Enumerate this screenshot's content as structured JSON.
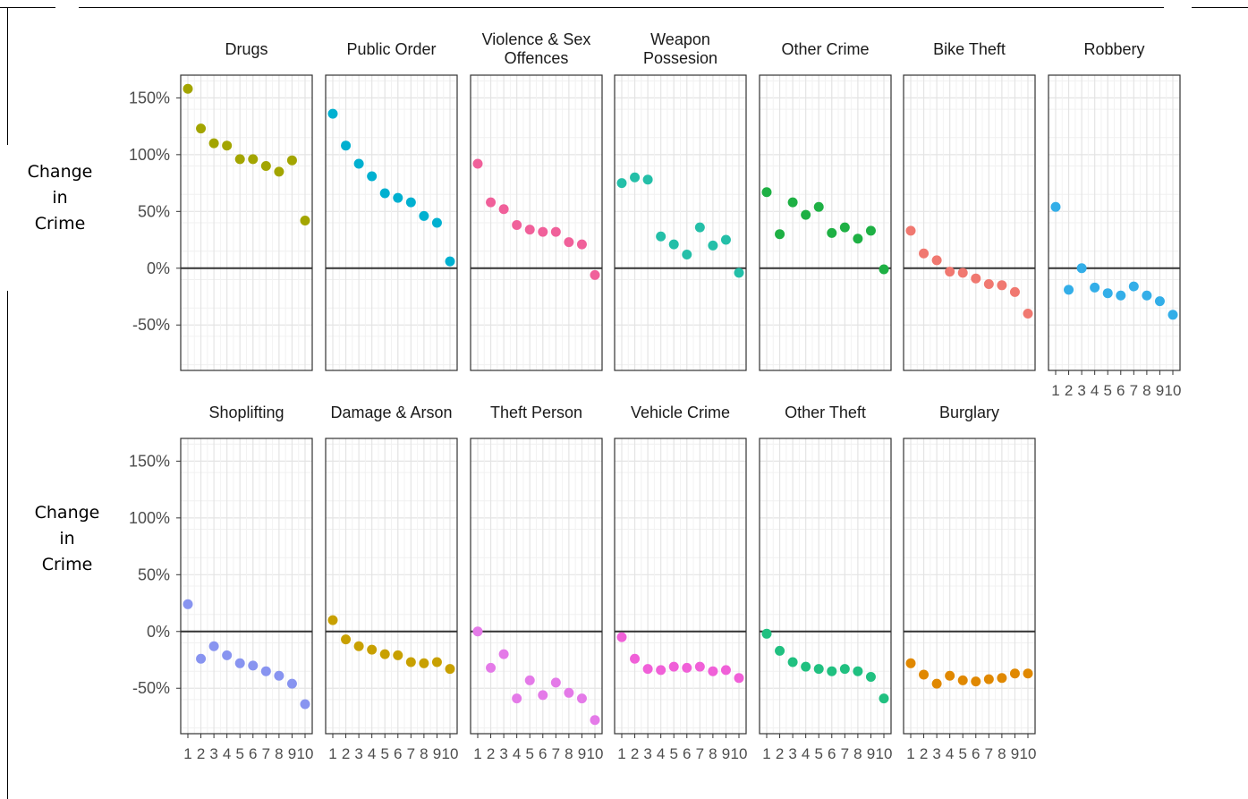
{
  "row_ylabels": [
    "Change\nin\nCrime",
    "Change\nin\nCrime"
  ],
  "chart_data": {
    "type": "scatter",
    "facet_layout": {
      "rows": 2,
      "columns": 7
    },
    "x": [
      1,
      2,
      3,
      4,
      5,
      6,
      7,
      8,
      9,
      10
    ],
    "x_tick_labels": [
      "1",
      "2",
      "3",
      "4",
      "5",
      "6",
      "7",
      "8",
      "9",
      "10"
    ],
    "ylim": [
      -90,
      170
    ],
    "y_ticks": [
      150,
      100,
      50,
      0,
      -50
    ],
    "y_tick_labels": [
      "150%",
      "100%",
      "50%",
      "0%",
      "-50%"
    ],
    "reference_line_y": 0,
    "grid": true,
    "legend": "none",
    "series": [
      {
        "name": "Drugs",
        "color": "#a3a500",
        "values": [
          158,
          123,
          110,
          108,
          96,
          96,
          90,
          85,
          95,
          42
        ]
      },
      {
        "name": "Public Order",
        "color": "#00b0d0",
        "values": [
          136,
          108,
          92,
          81,
          66,
          62,
          58,
          46,
          40,
          6
        ]
      },
      {
        "name": "Violence & Sex\nOffences",
        "color": "#f0609a",
        "values": [
          92,
          58,
          52,
          38,
          34,
          32,
          32,
          23,
          21,
          -6
        ]
      },
      {
        "name": "Weapon\nPossesion",
        "color": "#24bfa8",
        "values": [
          75,
          80,
          78,
          28,
          21,
          12,
          36,
          20,
          25,
          -4
        ]
      },
      {
        "name": "Other Crime",
        "color": "#1eb044",
        "values": [
          67,
          30,
          58,
          47,
          54,
          31,
          36,
          26,
          33,
          -1
        ]
      },
      {
        "name": "Bike Theft",
        "color": "#f07870",
        "values": [
          33,
          13,
          7,
          -3,
          -4,
          -9,
          -14,
          -15,
          -21,
          -40
        ]
      },
      {
        "name": "Robbery",
        "color": "#33aee8",
        "values": [
          54,
          -19,
          0,
          -17,
          -22,
          -24,
          -16,
          -24,
          -29,
          -41
        ]
      },
      {
        "name": "Shoplifting",
        "color": "#8894f0",
        "values": [
          24,
          -24,
          -13,
          -21,
          -28,
          -30,
          -35,
          -39,
          -46,
          -64
        ]
      },
      {
        "name": "Damage & Arson",
        "color": "#c8a000",
        "values": [
          10,
          -7,
          -13,
          -16,
          -20,
          -21,
          -27,
          -28,
          -27,
          -33
        ]
      },
      {
        "name": "Theft Person",
        "color": "#e47ae8",
        "values": [
          0,
          -32,
          -20,
          -59,
          -43,
          -56,
          -45,
          -54,
          -59,
          -78
        ]
      },
      {
        "name": "Vehicle Crime",
        "color": "#f060d8",
        "values": [
          -5,
          -24,
          -33,
          -34,
          -31,
          -32,
          -31,
          -35,
          -34,
          -41
        ]
      },
      {
        "name": "Other Theft",
        "color": "#20c080",
        "values": [
          -2,
          -17,
          -27,
          -31,
          -33,
          -35,
          -33,
          -35,
          -40,
          -59
        ]
      },
      {
        "name": "Burglary",
        "color": "#e08800",
        "values": [
          -28,
          -38,
          -46,
          -39,
          -43,
          -44,
          -42,
          -41,
          -37,
          -37
        ]
      }
    ]
  }
}
